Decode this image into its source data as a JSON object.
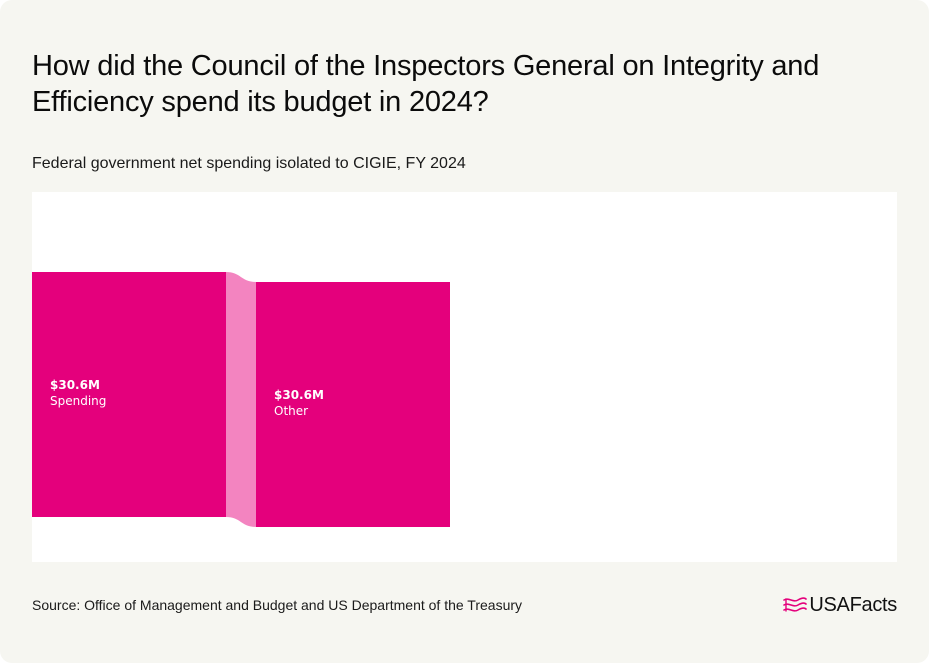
{
  "header": {
    "title": "How did the Council of the Inspectors General on Integrity and Efficiency spend its budget in 2024?",
    "subtitle": "Federal government net spending isolated to CIGIE, FY 2024"
  },
  "footer": {
    "source": "Source: Office of Management and Budget and US Department of the Treasury",
    "logo_text": "USAFacts",
    "logo_icon": "usafacts-flag-icon"
  },
  "colors": {
    "node": "#e4007c",
    "link": "#f384c0",
    "background": "#f6f6f1",
    "plot_background": "#ffffff"
  },
  "chart_data": {
    "type": "sankey",
    "unit": "$M",
    "nodes": [
      {
        "id": "spending",
        "name": "Spending",
        "value": 30.6,
        "value_label": "$30.6M",
        "level": 0
      },
      {
        "id": "other",
        "name": "Other",
        "value": 30.6,
        "value_label": "$30.6M",
        "level": 1
      }
    ],
    "links": [
      {
        "source": "spending",
        "target": "other",
        "value": 30.6
      }
    ]
  }
}
